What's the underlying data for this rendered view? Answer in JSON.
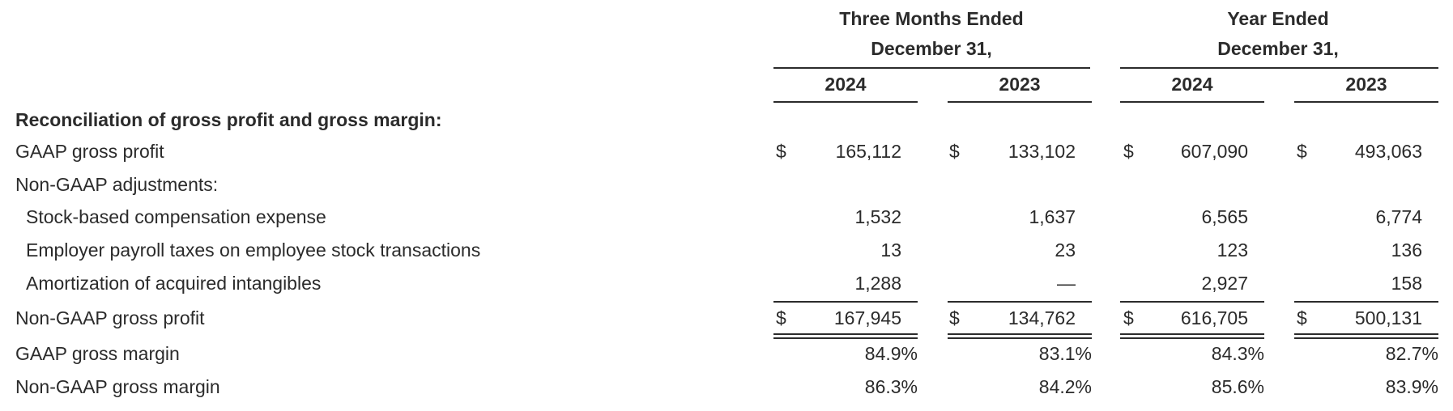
{
  "table": {
    "group_headers": [
      {
        "line1": "Three Months Ended",
        "line2": "December 31,"
      },
      {
        "line1": "Year Ended",
        "line2": "December 31,"
      }
    ],
    "columns": [
      "2024",
      "2023",
      "2024",
      "2023"
    ],
    "currency_symbol": "$",
    "section_title": "Reconciliation of gross profit and gross margin:",
    "rows": [
      {
        "label": "GAAP gross profit",
        "values": [
          "165,112",
          "133,102",
          "607,090",
          "493,063"
        ]
      },
      {
        "label": "Non-GAAP adjustments:",
        "values": [
          "",
          "",
          "",
          ""
        ]
      },
      {
        "label": "Stock-based compensation expense",
        "values": [
          "1,532",
          "1,637",
          "6,565",
          "6,774"
        ]
      },
      {
        "label": "Employer payroll taxes on employee stock transactions",
        "values": [
          "13",
          "23",
          "123",
          "136"
        ]
      },
      {
        "label": "Amortization of acquired intangibles",
        "values": [
          "1,288",
          "—",
          "2,927",
          "158"
        ]
      },
      {
        "label": "Non-GAAP gross profit",
        "values": [
          "167,945",
          "134,762",
          "616,705",
          "500,131"
        ]
      },
      {
        "label": "GAAP gross margin",
        "values": [
          "84.9%",
          "83.1%",
          "84.3%",
          "82.7%"
        ]
      },
      {
        "label": "Non-GAAP gross margin",
        "values": [
          "86.3%",
          "84.2%",
          "85.6%",
          "83.9%"
        ]
      }
    ]
  }
}
